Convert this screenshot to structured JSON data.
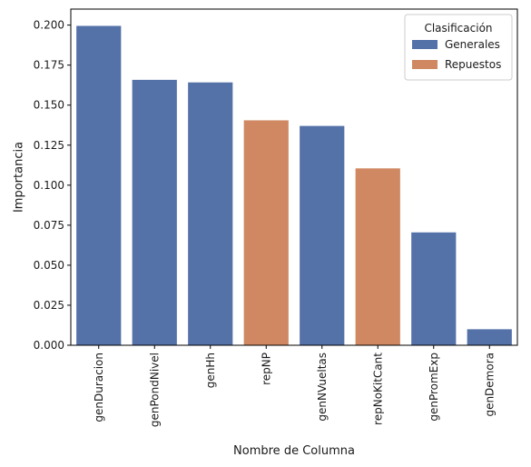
{
  "chart_data": {
    "type": "bar",
    "title": "",
    "xlabel": "Nombre de Columna",
    "ylabel": "Importancia",
    "ylim": [
      0,
      0.21
    ],
    "yticks": [
      "0.000",
      "0.025",
      "0.050",
      "0.075",
      "0.100",
      "0.125",
      "0.150",
      "0.175",
      "0.200"
    ],
    "categories": [
      "genDuracion",
      "genPondNivel",
      "genHh",
      "repNP",
      "genNVueltas",
      "repNoKitCant",
      "genPromExp",
      "genDemora"
    ],
    "values": [
      0.1995,
      0.1658,
      0.1642,
      0.1405,
      0.137,
      0.1105,
      0.0705,
      0.01
    ],
    "groups": [
      "Generales",
      "Generales",
      "Generales",
      "Repuestos",
      "Generales",
      "Repuestos",
      "Generales",
      "Generales"
    ],
    "legend": {
      "title": "Clasificación",
      "placement": "top-right",
      "entries": [
        {
          "name": "Generales",
          "color": "#5471a8"
        },
        {
          "name": "Repuestos",
          "color": "#cf8862"
        }
      ]
    },
    "grid": false
  }
}
